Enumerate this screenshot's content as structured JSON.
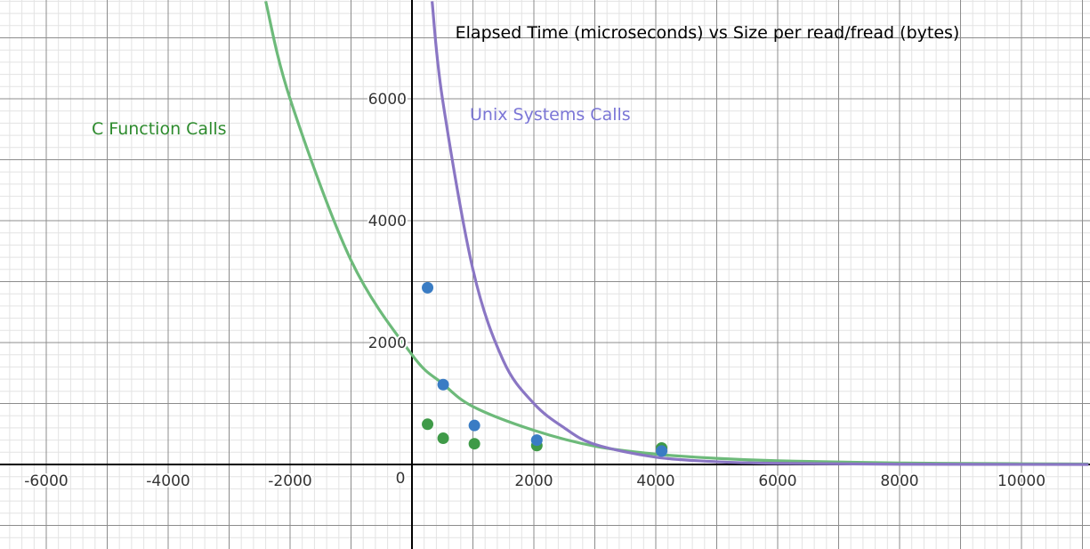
{
  "chart_data": {
    "type": "scatter",
    "title": "Elapsed Time (microseconds) vs Size per read/fread (bytes)",
    "xlabel": "",
    "ylabel": "",
    "xlim": [
      -6700,
      11100
    ],
    "ylim": [
      -1400,
      7600
    ],
    "grid": true,
    "x_ticks": [
      -6000,
      -4000,
      -2000,
      2000,
      4000,
      6000,
      8000,
      10000
    ],
    "y_ticks": [
      2000,
      4000,
      6000
    ],
    "origin_label": "0",
    "annotations": [
      {
        "text": "C Function Calls",
        "color": "#2e8b2e"
      },
      {
        "text": "Unix Systems Calls",
        "color": "#7b76d6"
      }
    ],
    "series": [
      {
        "name": "",
        "kind": "points",
        "color": "#3a7cc4",
        "points": [
          [
            256,
            2900
          ],
          [
            512,
            1310
          ],
          [
            1024,
            640
          ],
          [
            2048,
            400
          ],
          [
            4096,
            220
          ]
        ]
      },
      {
        "name": "",
        "kind": "points",
        "color": "#3f9a48",
        "points": [
          [
            256,
            660
          ],
          [
            512,
            430
          ],
          [
            1024,
            340
          ],
          [
            2048,
            310
          ],
          [
            4096,
            270
          ]
        ]
      },
      {
        "name": "",
        "kind": "curve",
        "color": "#6dba7a",
        "points": [
          [
            -2400,
            7600
          ],
          [
            -2000,
            6000
          ],
          [
            -1000,
            3350
          ],
          [
            0,
            1800
          ],
          [
            500,
            1330
          ],
          [
            1000,
            950
          ],
          [
            2000,
            560
          ],
          [
            3000,
            300
          ],
          [
            4000,
            170
          ],
          [
            5000,
            100
          ],
          [
            6000,
            60
          ],
          [
            8000,
            25
          ],
          [
            10000,
            12
          ],
          [
            11100,
            8
          ]
        ]
      },
      {
        "name": "",
        "kind": "curve",
        "color": "#8a76c4",
        "points": [
          [
            330,
            7600
          ],
          [
            500,
            6000
          ],
          [
            1000,
            3200
          ],
          [
            1500,
            1700
          ],
          [
            2000,
            1000
          ],
          [
            2500,
            600
          ],
          [
            3000,
            330
          ],
          [
            4000,
            120
          ],
          [
            5000,
            45
          ],
          [
            6000,
            18
          ],
          [
            8000,
            4
          ],
          [
            11100,
            0
          ]
        ]
      }
    ]
  }
}
